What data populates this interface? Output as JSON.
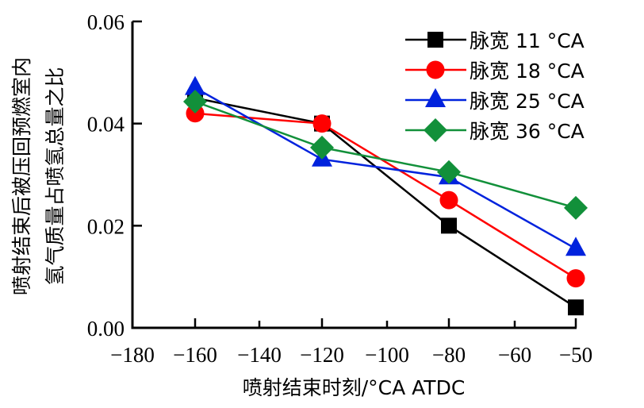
{
  "chart_data": {
    "type": "line",
    "title": "",
    "xlabel": "喷射结束时刻/°CA ATDC",
    "ylabel_lines": [
      "喷射结束后被压回预燃室内",
      "氢气质量占喷氢总量之比"
    ],
    "x_ticks": [
      -180,
      -160,
      -140,
      -120,
      -100,
      -80,
      -60,
      -50
    ],
    "x_tick_labels": [
      "−180",
      "−160",
      "−140",
      "−120",
      "−100",
      "−80",
      "−60",
      "−50"
    ],
    "y_ticks": [
      0.0,
      0.02,
      0.04,
      0.06
    ],
    "y_tick_labels": [
      "0.00",
      "0.02",
      "0.04",
      "0.06"
    ],
    "xlim": [
      -180,
      -50
    ],
    "ylim": [
      0,
      0.06
    ],
    "grid": false,
    "legend_position": "top-right",
    "x": [
      -160,
      -120,
      -80,
      -50
    ],
    "series": [
      {
        "name": "脉宽 11 °CA",
        "color": "#000000",
        "marker": "square",
        "values": [
          0.045,
          0.04,
          0.02,
          0.004
        ]
      },
      {
        "name": "脉宽 18 °CA",
        "color": "#ff0000",
        "marker": "circle",
        "values": [
          0.042,
          0.04,
          0.025,
          0.0097
        ]
      },
      {
        "name": "脉宽 25 °CA",
        "color": "#0022dd",
        "marker": "triangle",
        "values": [
          0.047,
          0.033,
          0.0295,
          0.0155
        ]
      },
      {
        "name": "脉宽 36 °CA",
        "color": "#12903a",
        "marker": "diamond",
        "values": [
          0.0443,
          0.0353,
          0.0305,
          0.0235
        ]
      }
    ]
  }
}
